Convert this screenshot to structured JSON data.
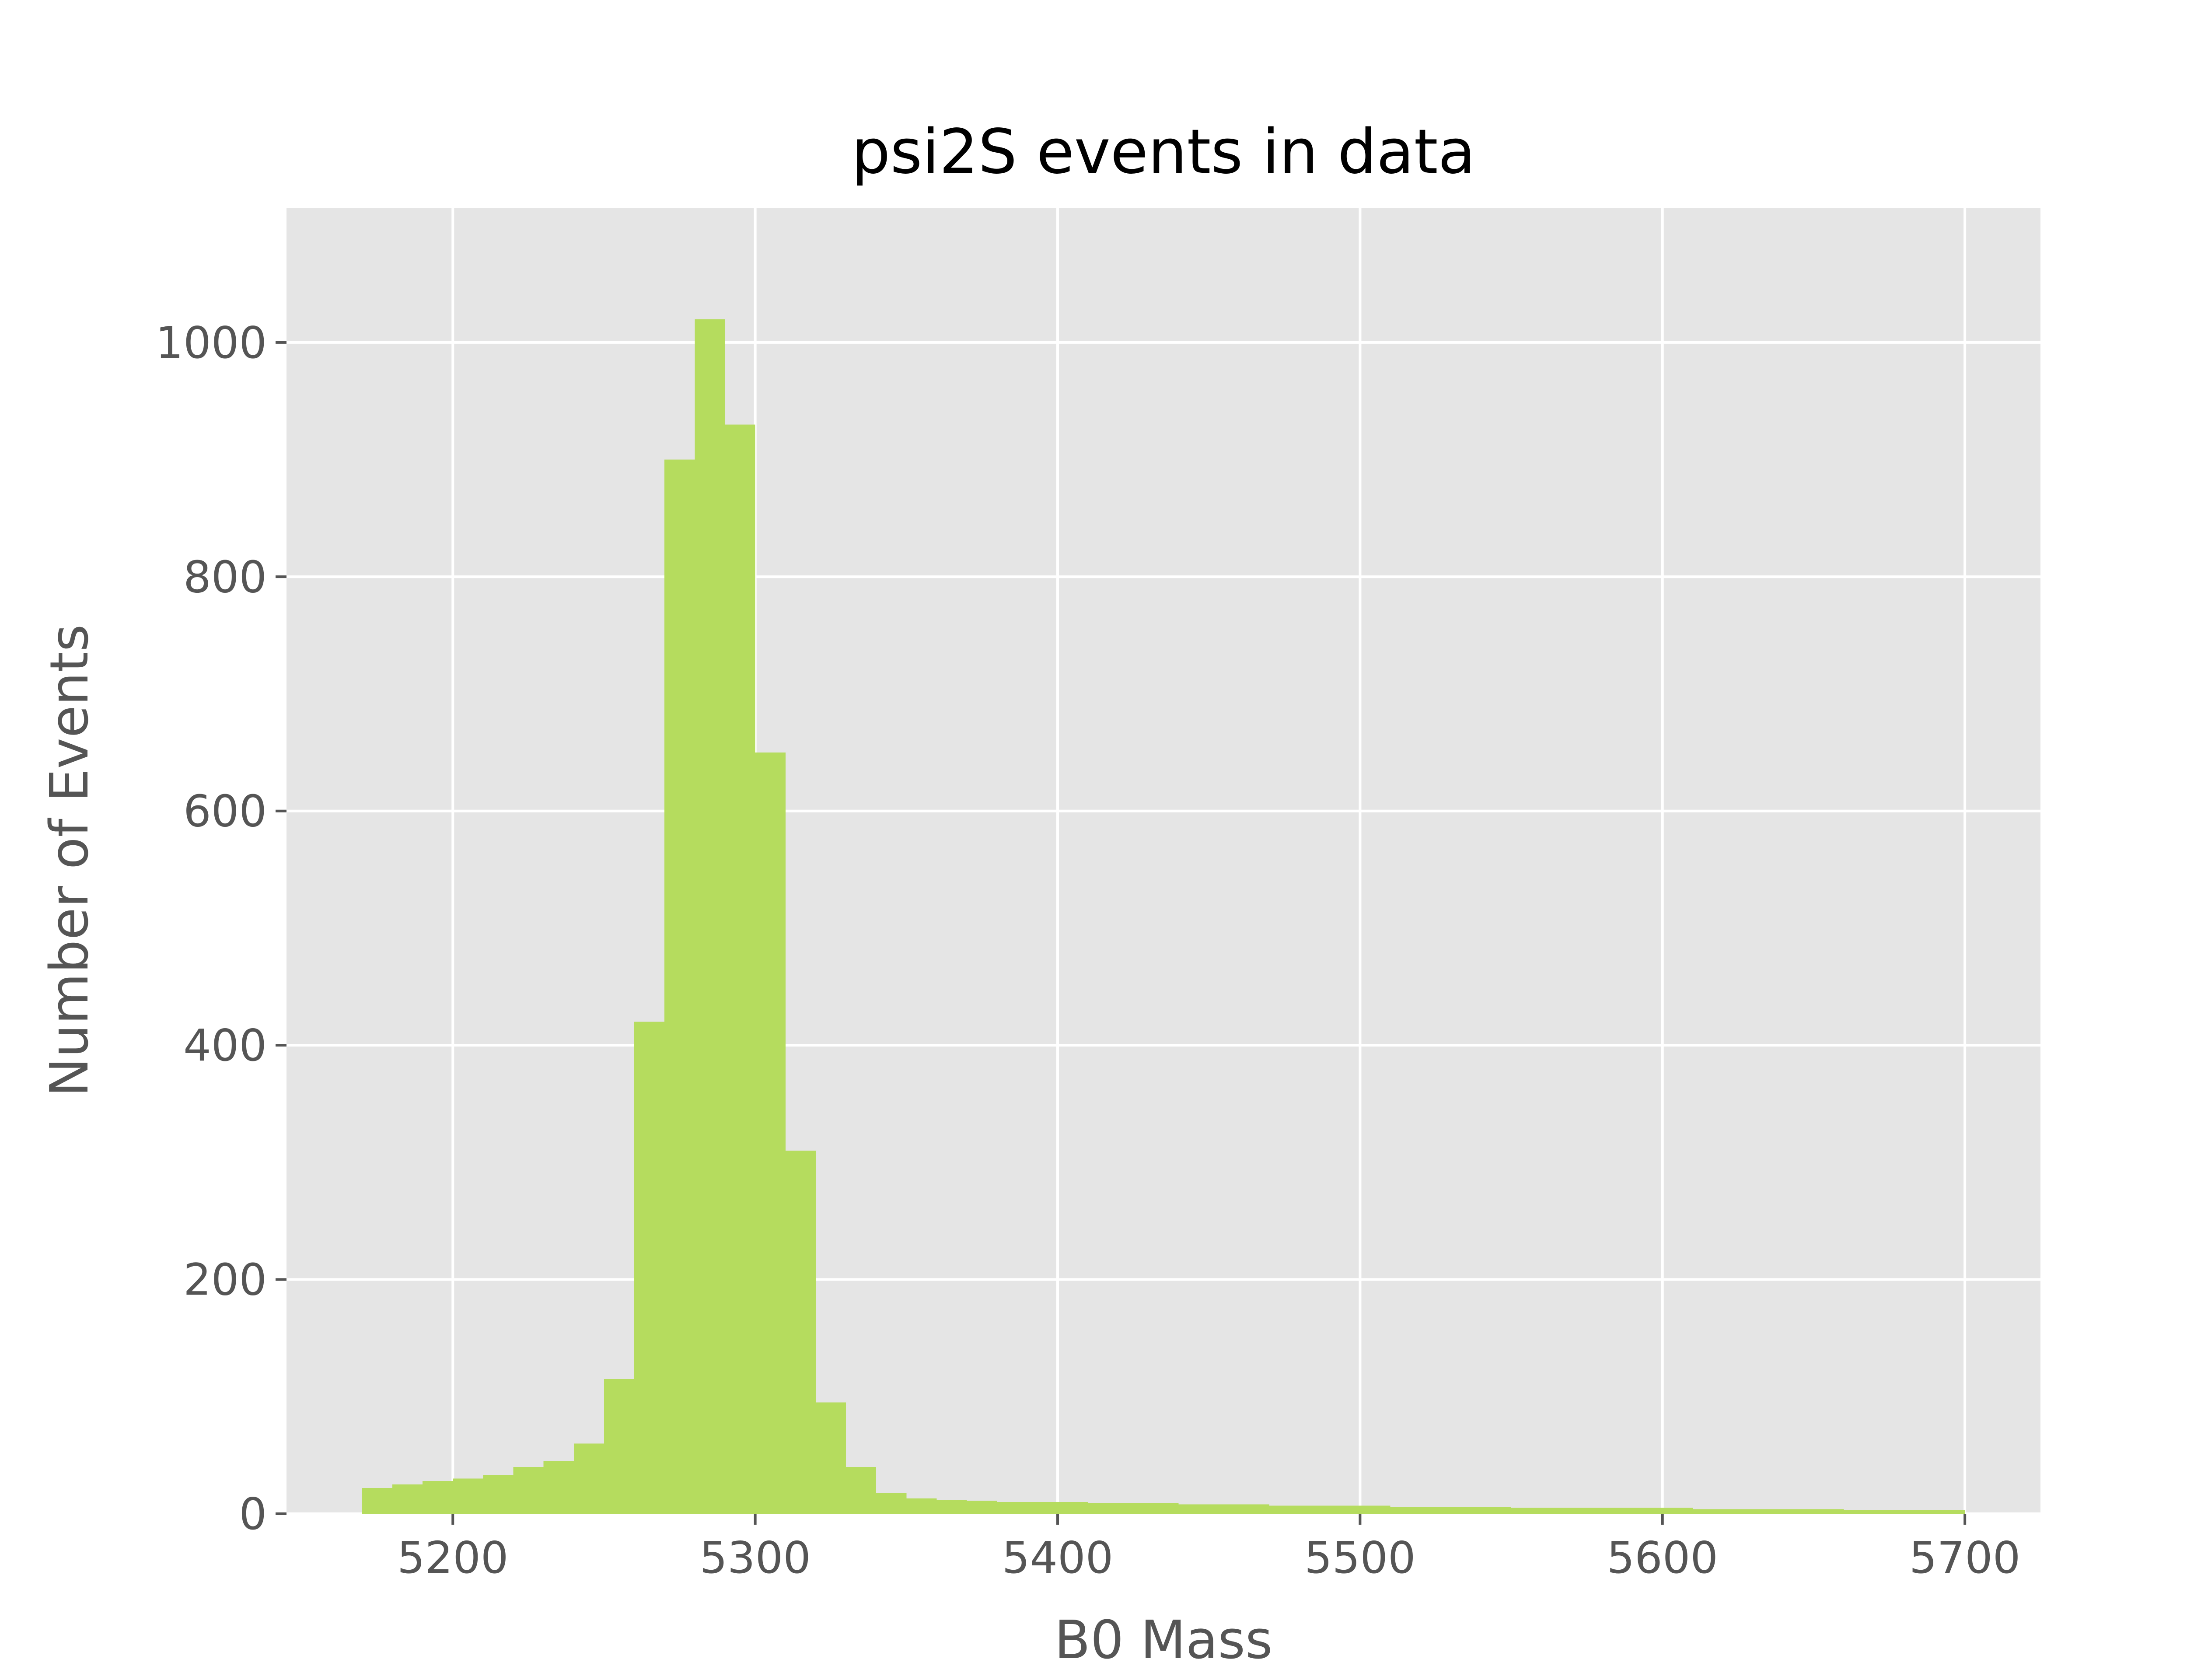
{
  "chart_data": {
    "type": "bar",
    "title": "psi2S events in data",
    "xlabel": "B0 Mass",
    "ylabel": "Number of Events",
    "xlim": [
      5145,
      5725
    ],
    "ylim": [
      0,
      1115
    ],
    "x_ticks": [
      5200,
      5300,
      5400,
      5500,
      5600,
      5700
    ],
    "y_ticks": [
      0,
      200,
      400,
      600,
      800,
      1000
    ],
    "grid": true,
    "legend": "none",
    "colors": {
      "bar": "#b5dc5e",
      "plot_background": "#e5e5e5",
      "grid": "#ffffff",
      "tick_text": "#555555",
      "title_text": "#000000"
    },
    "bin_width": 10,
    "bins": [
      5170,
      5180,
      5190,
      5200,
      5210,
      5220,
      5230,
      5240,
      5250,
      5260,
      5270,
      5280,
      5290,
      5300,
      5310,
      5320,
      5330,
      5340,
      5350,
      5360,
      5370,
      5380,
      5390,
      5400,
      5410,
      5420,
      5430,
      5440,
      5450,
      5460,
      5470,
      5480,
      5490,
      5500,
      5510,
      5520,
      5530,
      5540,
      5550,
      5560,
      5570,
      5580,
      5590,
      5600,
      5610,
      5620,
      5630,
      5640,
      5650,
      5660,
      5670,
      5680,
      5690
    ],
    "values": [
      22,
      25,
      28,
      30,
      33,
      40,
      45,
      60,
      115,
      420,
      900,
      1020,
      930,
      650,
      310,
      95,
      40,
      18,
      13,
      12,
      11,
      10,
      10,
      10,
      9,
      9,
      9,
      8,
      8,
      8,
      7,
      7,
      7,
      7,
      6,
      6,
      6,
      6,
      5,
      5,
      5,
      5,
      5,
      5,
      4,
      4,
      4,
      4,
      4,
      3,
      3,
      3,
      3
    ]
  }
}
